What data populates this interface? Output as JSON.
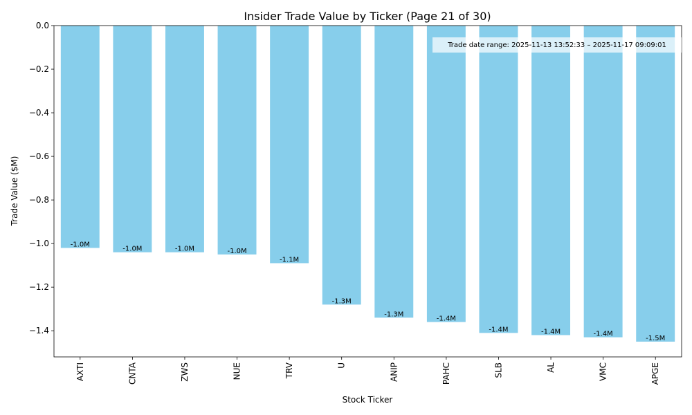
{
  "chart_data": {
    "type": "bar",
    "title": "Insider Trade Value by Ticker (Page 21 of 30)",
    "x_label": "Stock Ticker",
    "y_label": "Trade Value ($M)",
    "annotation": "Trade date range: 2025-11-13 13:52:33 – 2025-11-17 09:09:01",
    "categories": [
      "AXTI",
      "CNTA",
      "ZWS",
      "NUE",
      "TRV",
      "U",
      "ANIP",
      "PAHC",
      "SLB",
      "AL",
      "VMC",
      "APGE"
    ],
    "values": [
      -1.02,
      -1.04,
      -1.04,
      -1.05,
      -1.09,
      -1.28,
      -1.34,
      -1.36,
      -1.41,
      -1.42,
      -1.43,
      -1.45
    ],
    "value_labels": [
      "-1.0M",
      "-1.0M",
      "-1.0M",
      "-1.0M",
      "-1.1M",
      "-1.3M",
      "-1.3M",
      "-1.4M",
      "-1.4M",
      "-1.4M",
      "-1.4M",
      "-1.5M"
    ],
    "color": "#87ceeb",
    "ylim": [
      -1.52,
      0
    ],
    "yticks": [
      {
        "value": 0,
        "label": "0.0"
      },
      {
        "value": -0.2,
        "label": "−0.2"
      },
      {
        "value": -0.4,
        "label": "−0.4"
      },
      {
        "value": -0.6,
        "label": "−0.6"
      },
      {
        "value": -0.8,
        "label": "−0.8"
      },
      {
        "value": -1.0,
        "label": "−1.0"
      },
      {
        "value": -1.2,
        "label": "−1.2"
      },
      {
        "value": -1.4,
        "label": "−1.4"
      }
    ],
    "grid": false
  }
}
